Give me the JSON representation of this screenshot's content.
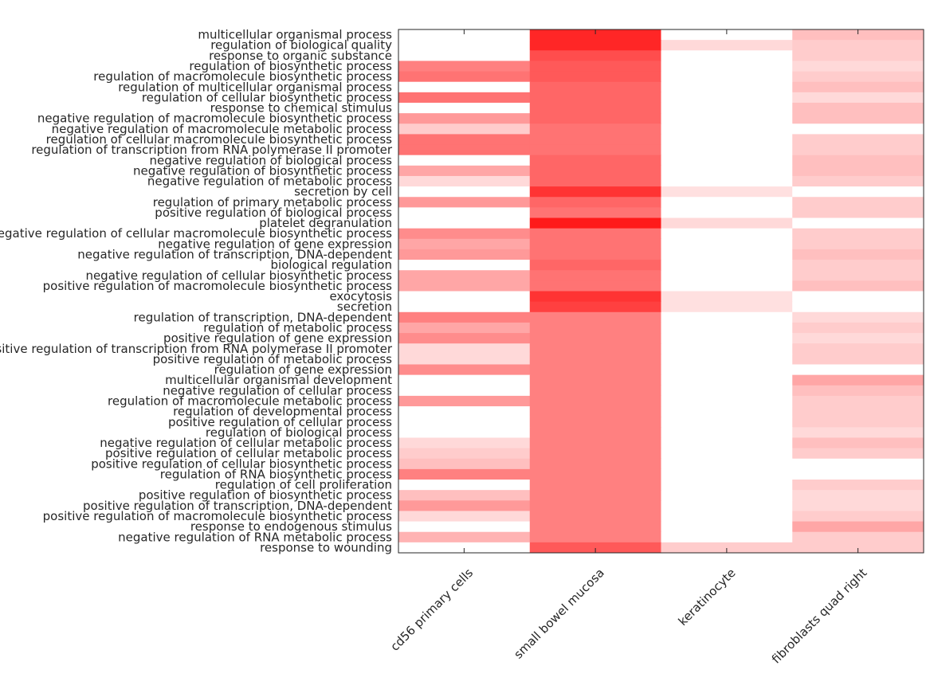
{
  "chart_data": {
    "type": "heatmap",
    "title": "",
    "xlabel": "",
    "ylabel": "",
    "color_low": "#ffffff",
    "color_high": "#ff0000",
    "value_range": [
      0,
      1
    ],
    "columns": [
      "cd56 primary cells",
      "small bowel mucosa",
      "keratinocyte",
      "fibroblasts quad right"
    ],
    "rows": [
      "multicellular organismal process",
      "regulation of biological quality",
      "response to organic substance",
      "regulation of biosynthetic process",
      "regulation of macromolecule biosynthetic process",
      "regulation of multicellular organismal process",
      "regulation of cellular biosynthetic process",
      "response to chemical stimulus",
      "negative regulation of macromolecule biosynthetic process",
      "negative regulation of macromolecule metabolic process",
      "regulation of cellular macromolecule biosynthetic process",
      "regulation of transcription from RNA polymerase II promoter",
      "negative regulation of biological process",
      "negative regulation of biosynthetic process",
      "negative regulation of metabolic process",
      "secretion by cell",
      "regulation of primary metabolic process",
      "positive regulation of biological process",
      "platelet degranulation",
      "negative regulation of cellular macromolecule biosynthetic process",
      "negative regulation of gene expression",
      "negative regulation of transcription, DNA-dependent",
      "biological regulation",
      "negative regulation of cellular biosynthetic process",
      "positive regulation of macromolecule biosynthetic process",
      "exocytosis",
      "secretion",
      "regulation of transcription, DNA-dependent",
      "regulation of metabolic process",
      "positive regulation of gene expression",
      "positive regulation of transcription from RNA polymerase II promoter",
      "positive regulation of metabolic process",
      "regulation of gene expression",
      "multicellular organismal development",
      "negative regulation of cellular process",
      "regulation of macromolecule metabolic process",
      "regulation of developmental process",
      "positive regulation of cellular process",
      "regulation of biological process",
      "negative regulation of cellular metabolic process",
      "positive regulation of cellular metabolic process",
      "positive regulation of cellular biosynthetic process",
      "regulation of RNA biosynthetic process",
      "regulation of cell proliferation",
      "positive regulation of biosynthetic process",
      "positive regulation of transcription, DNA-dependent",
      "positive regulation of macromolecule biosynthetic process",
      "response to endogenous stimulus",
      "negative regulation of RNA metabolic process",
      "response to wounding"
    ],
    "values": [
      [
        0.0,
        0.85,
        0.0,
        0.25
      ],
      [
        0.0,
        0.85,
        0.15,
        0.2
      ],
      [
        0.0,
        0.7,
        0.0,
        0.2
      ],
      [
        0.5,
        0.65,
        0.0,
        0.15
      ],
      [
        0.55,
        0.65,
        0.0,
        0.2
      ],
      [
        0.0,
        0.6,
        0.0,
        0.25
      ],
      [
        0.55,
        0.6,
        0.0,
        0.15
      ],
      [
        0.0,
        0.6,
        0.0,
        0.25
      ],
      [
        0.4,
        0.6,
        0.0,
        0.25
      ],
      [
        0.2,
        0.55,
        0.0,
        0.0
      ],
      [
        0.55,
        0.55,
        0.0,
        0.2
      ],
      [
        0.55,
        0.55,
        0.0,
        0.2
      ],
      [
        0.0,
        0.6,
        0.0,
        0.25
      ],
      [
        0.35,
        0.6,
        0.0,
        0.25
      ],
      [
        0.15,
        0.6,
        0.0,
        0.2
      ],
      [
        0.0,
        0.8,
        0.12,
        0.0
      ],
      [
        0.4,
        0.6,
        0.0,
        0.2
      ],
      [
        0.0,
        0.55,
        0.0,
        0.2
      ],
      [
        0.0,
        0.9,
        0.15,
        0.0
      ],
      [
        0.45,
        0.55,
        0.0,
        0.2
      ],
      [
        0.35,
        0.55,
        0.0,
        0.2
      ],
      [
        0.4,
        0.55,
        0.0,
        0.25
      ],
      [
        0.0,
        0.6,
        0.0,
        0.2
      ],
      [
        0.35,
        0.55,
        0.0,
        0.2
      ],
      [
        0.35,
        0.55,
        0.0,
        0.25
      ],
      [
        0.0,
        0.8,
        0.12,
        0.0
      ],
      [
        0.0,
        0.75,
        0.12,
        0.0
      ],
      [
        0.5,
        0.5,
        0.0,
        0.15
      ],
      [
        0.35,
        0.5,
        0.0,
        0.2
      ],
      [
        0.45,
        0.5,
        0.0,
        0.15
      ],
      [
        0.15,
        0.5,
        0.0,
        0.2
      ],
      [
        0.15,
        0.5,
        0.0,
        0.2
      ],
      [
        0.45,
        0.5,
        0.0,
        0.0
      ],
      [
        0.0,
        0.5,
        0.0,
        0.35
      ],
      [
        0.0,
        0.5,
        0.0,
        0.25
      ],
      [
        0.4,
        0.5,
        0.0,
        0.2
      ],
      [
        0.0,
        0.5,
        0.0,
        0.2
      ],
      [
        0.0,
        0.5,
        0.0,
        0.2
      ],
      [
        0.0,
        0.5,
        0.0,
        0.15
      ],
      [
        0.15,
        0.5,
        0.0,
        0.25
      ],
      [
        0.2,
        0.5,
        0.0,
        0.2
      ],
      [
        0.25,
        0.5,
        0.0,
        0.0
      ],
      [
        0.5,
        0.5,
        0.0,
        0.0
      ],
      [
        0.0,
        0.5,
        0.0,
        0.2
      ],
      [
        0.25,
        0.5,
        0.0,
        0.15
      ],
      [
        0.4,
        0.5,
        0.0,
        0.15
      ],
      [
        0.15,
        0.5,
        0.0,
        0.2
      ],
      [
        0.0,
        0.5,
        0.0,
        0.35
      ],
      [
        0.3,
        0.5,
        0.0,
        0.2
      ],
      [
        0.0,
        0.65,
        0.2,
        0.2
      ]
    ],
    "grid": false,
    "legend": "none"
  }
}
